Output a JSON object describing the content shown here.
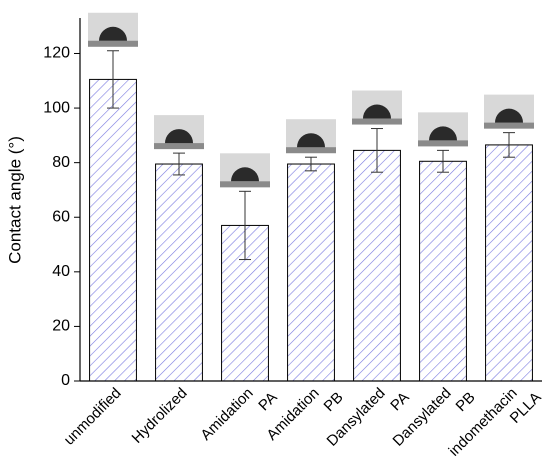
{
  "chart_data": {
    "type": "bar",
    "y_label": "Contact angle (°)",
    "categories": [
      [
        "unmodified"
      ],
      [
        "Hydrolized"
      ],
      [
        "Amidation",
        "PA"
      ],
      [
        "Amidation",
        "PB"
      ],
      [
        "Dansylated",
        "PA"
      ],
      [
        "Dansylated",
        "PB"
      ],
      [
        "indomethacin",
        "PLLA"
      ]
    ],
    "values": [
      110.5,
      79.5,
      57,
      79.5,
      84.5,
      80.5,
      86.5
    ],
    "errors": [
      10.5,
      4,
      12.5,
      2.5,
      8,
      4,
      4.5
    ],
    "color": "#7a7ae0",
    "ylim": [
      0,
      133
    ],
    "yticks": [
      0,
      20,
      40,
      60,
      80,
      100,
      120
    ]
  }
}
